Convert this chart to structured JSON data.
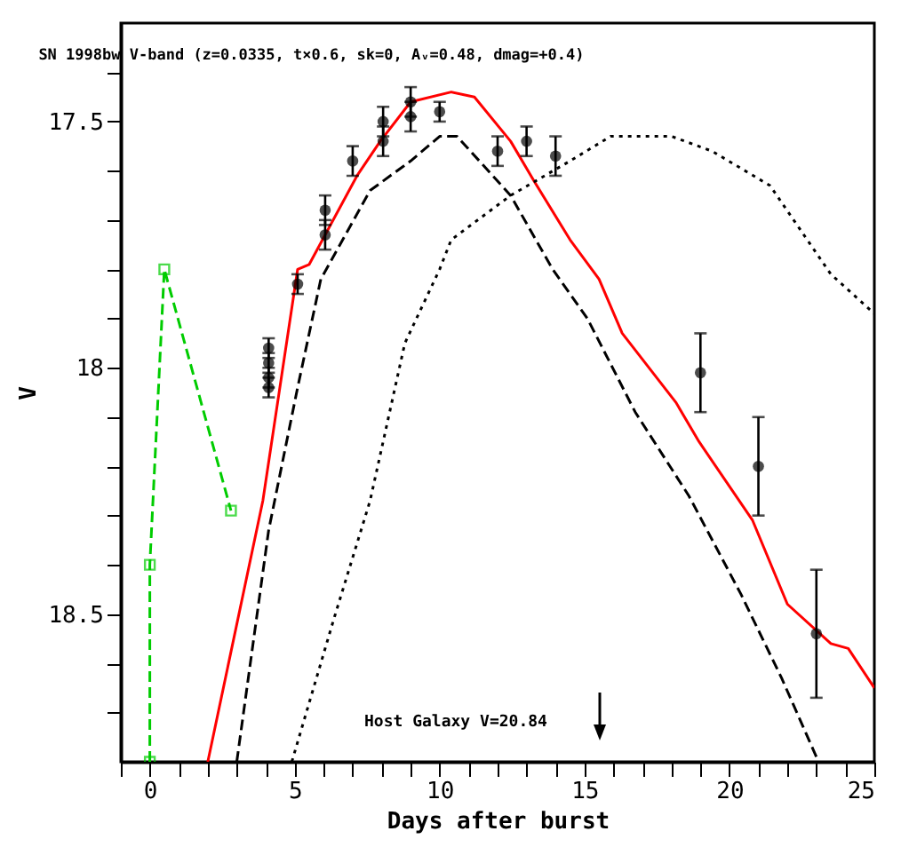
{
  "chart_data": {
    "type": "line",
    "title": "SN 1998bw V-band (z=0.0335, t×0.6, sk=0, Aᵥ=0.48, dmag=+0.4)",
    "xlabel": "Days after burst",
    "ylabel": "V",
    "annotations": [
      "Host Galaxy V=20.84"
    ],
    "xlim": [
      -1,
      25
    ],
    "ylim": [
      18.8,
      17.3
    ],
    "xticks": [
      {
        "value": -1,
        "label": null
      },
      0,
      {
        "value": 1,
        "label": null
      },
      {
        "value": 2,
        "label": null
      },
      {
        "value": 3,
        "label": null
      },
      {
        "value": 4,
        "label": null
      },
      5,
      {
        "value": 6,
        "label": null
      },
      {
        "value": 7,
        "label": null
      },
      {
        "value": 8,
        "label": null
      },
      {
        "value": 9,
        "label": null
      },
      10,
      {
        "value": 11,
        "label": null
      },
      {
        "value": 12,
        "label": null
      },
      {
        "value": 13,
        "label": null
      },
      {
        "value": 14,
        "label": null
      },
      15,
      {
        "value": 16,
        "label": null
      },
      {
        "value": 17,
        "label": null
      },
      {
        "value": 18,
        "label": null
      },
      {
        "value": 19,
        "label": null
      },
      20,
      {
        "value": 21,
        "label": null
      },
      {
        "value": 22,
        "label": null
      },
      {
        "value": 23,
        "label": null
      },
      {
        "value": 24,
        "label": null
      },
      25
    ],
    "yticks": [
      {
        "value": 17.4,
        "label": null
      },
      17.5,
      {
        "value": 17.6,
        "label": null
      },
      {
        "value": 17.7,
        "label": null
      },
      {
        "value": 17.8,
        "label": null
      },
      {
        "value": 17.9,
        "label": null
      },
      18,
      {
        "value": 18.1,
        "label": null
      },
      {
        "value": 18.2,
        "label": null
      },
      {
        "value": 18.3,
        "label": null
      },
      {
        "value": 18.4,
        "label": null
      },
      18.5,
      {
        "value": 18.6,
        "label": null
      },
      {
        "value": 18.7,
        "label": null
      }
    ],
    "grid": false,
    "series": [
      {
        "type": "line",
        "color": "#ff0000",
        "line_style": "solid",
        "marker": "none",
        "x": [
          2.0,
          3.9,
          5.1,
          5.5,
          7.15,
          7.95,
          9.0,
          10.4,
          11.2,
          12.45,
          13.25,
          14.5,
          15.5,
          16.3,
          18.15,
          18.95,
          20.8,
          22.0,
          23.5,
          24.1,
          25
        ],
        "values": [
          18.8,
          18.27,
          17.8,
          17.79,
          17.61,
          17.54,
          17.46,
          17.44,
          17.45,
          17.54,
          17.62,
          17.74,
          17.82,
          17.93,
          18.07,
          18.15,
          18.31,
          18.48,
          18.56,
          18.57,
          18.65
        ]
      },
      {
        "type": "line",
        "color": "#000000",
        "line_style": "dashed",
        "marker": "none",
        "x": [
          3.0,
          4.1,
          5.1,
          5.9,
          7.6,
          9.0,
          10.0,
          10.6,
          12.45,
          13.9,
          15.1,
          16.75,
          18.6,
          20.4,
          21.8,
          23.0
        ],
        "values": [
          18.8,
          18.33,
          18.04,
          17.82,
          17.64,
          17.58,
          17.53,
          17.53,
          17.65,
          17.8,
          17.9,
          18.09,
          18.26,
          18.46,
          18.63,
          18.79
        ]
      },
      {
        "type": "line",
        "color": "#000000",
        "line_style": "dotted",
        "marker": "none",
        "x": [
          4.9,
          6.35,
          7.6,
          8.8,
          10.0,
          10.4,
          12.45,
          14.5,
          15.9,
          18.0,
          19.4,
          21.4,
          23.5,
          25
        ],
        "values": [
          18.8,
          18.51,
          18.27,
          17.95,
          17.8,
          17.74,
          17.65,
          17.58,
          17.53,
          17.53,
          17.56,
          17.63,
          17.81,
          17.89
        ]
      },
      {
        "type": "line",
        "color": "#00cc00",
        "line_style": "dashed",
        "marker": "square",
        "x": [
          0,
          0,
          0.5,
          2.8
        ],
        "values": [
          18.8,
          18.4,
          17.8,
          18.29
        ]
      },
      {
        "type": "scatter",
        "color": "#000000",
        "marker": "circle",
        "x": [
          4.1,
          4.1,
          4.1,
          4.1,
          5.1,
          6.05,
          6.05,
          7.0,
          8.05,
          8.05,
          9.0,
          9.0,
          10.0,
          12.0,
          13.0,
          14.0,
          19.0,
          21.0,
          23.0
        ],
        "values": [
          17.96,
          17.99,
          18.02,
          18.04,
          17.83,
          17.68,
          17.73,
          17.58,
          17.5,
          17.54,
          17.46,
          17.49,
          17.48,
          17.56,
          17.54,
          17.57,
          18.01,
          18.2,
          18.54
        ],
        "errors": [
          0.02,
          0.02,
          0.02,
          0.02,
          0.02,
          0.03,
          0.03,
          0.03,
          0.03,
          0.03,
          0.03,
          0.03,
          0.02,
          0.03,
          0.03,
          0.04,
          0.08,
          0.1,
          0.13
        ]
      }
    ]
  }
}
